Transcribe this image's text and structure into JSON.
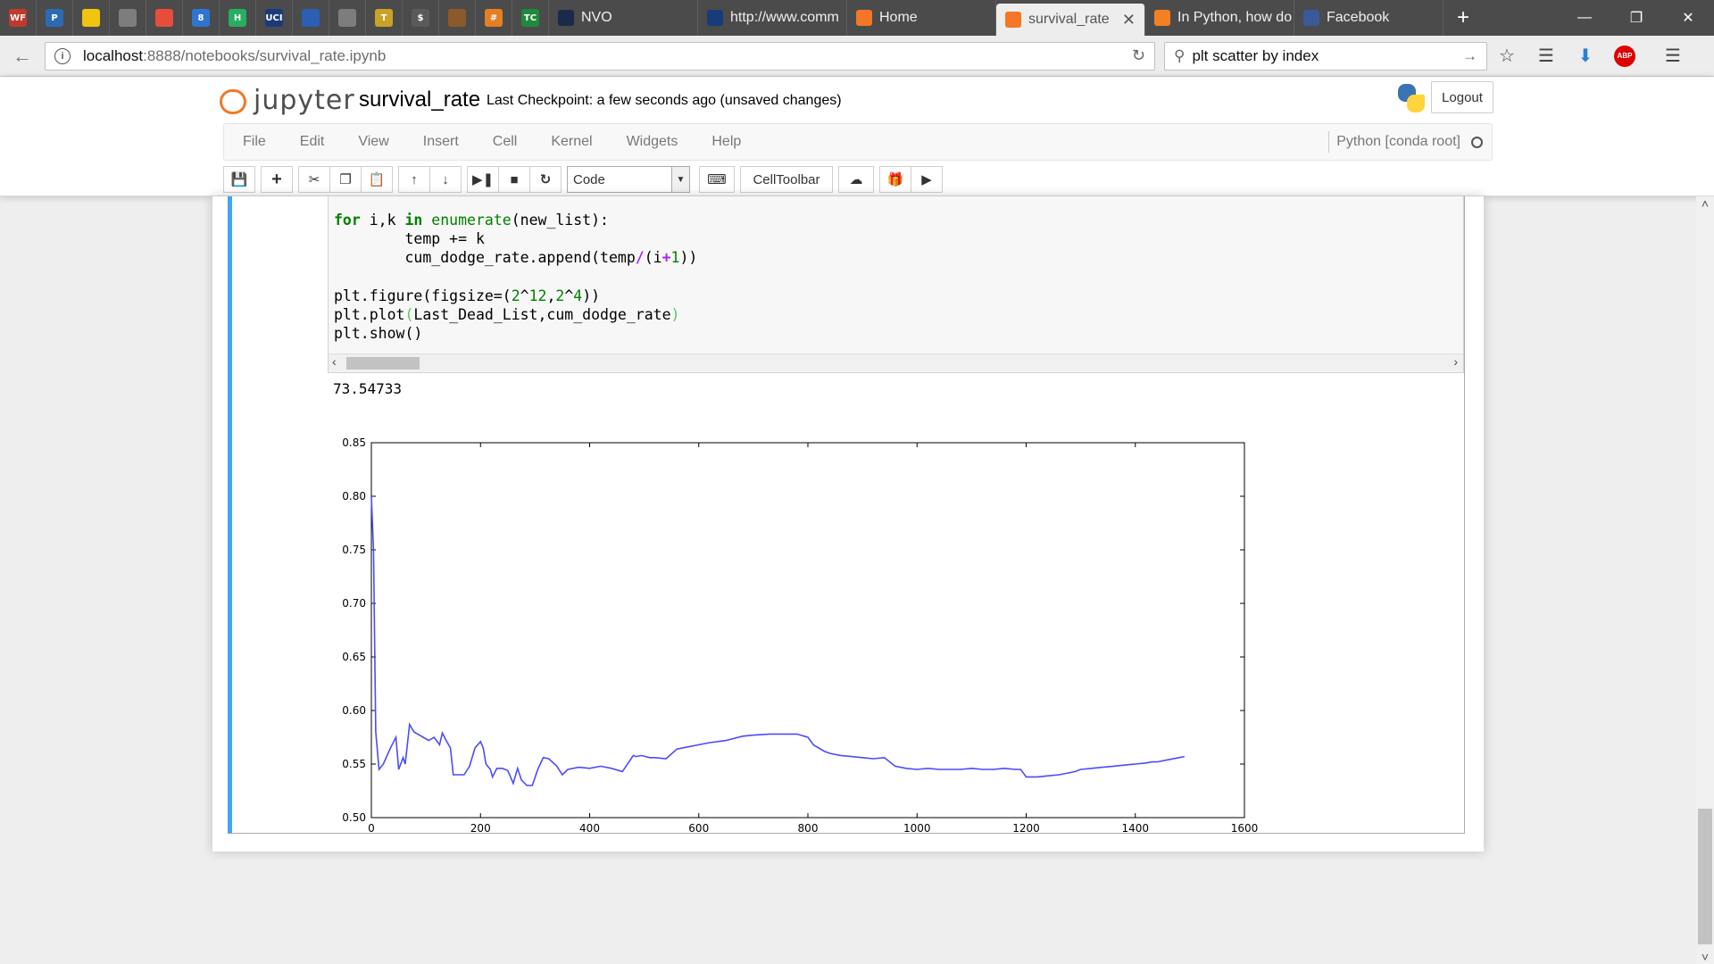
{
  "browser": {
    "pinned_tabs": [
      {
        "icon": "wf-icon",
        "text": "WF",
        "color": "#c0392b"
      },
      {
        "icon": "p-icon",
        "text": "P",
        "color": "#2d6ab3"
      },
      {
        "icon": "slides-icon",
        "text": "",
        "color": "#f1c40f"
      },
      {
        "icon": "globe-icon",
        "text": "",
        "color": "#7d7d7d"
      },
      {
        "icon": "ring-icon",
        "text": "",
        "color": "#e74c3c"
      },
      {
        "icon": "calendar-icon",
        "text": "8",
        "color": "#2f74d0"
      },
      {
        "icon": "h-icon",
        "text": "H",
        "color": "#27ae60"
      },
      {
        "icon": "uci-icon",
        "text": "UCI",
        "color": "#1a3b7a"
      },
      {
        "icon": "snowflake-icon",
        "text": "",
        "color": "#2b5fb4"
      },
      {
        "icon": "globe-icon",
        "text": "",
        "color": "#7d7d7d"
      },
      {
        "icon": "t-icon",
        "text": "T",
        "color": "#c9a227"
      },
      {
        "icon": "dollar-icon",
        "text": "$",
        "color": "#5a5a5a"
      },
      {
        "icon": "star-icon",
        "text": "",
        "color": "#8a5a2b"
      },
      {
        "icon": "hash-icon",
        "text": "#",
        "color": "#e67e22"
      },
      {
        "icon": "tc-icon",
        "text": "TC",
        "color": "#1e8a3a"
      }
    ],
    "tabs": [
      {
        "label": "NVO",
        "icon": "nvo-icon",
        "active": false
      },
      {
        "label": "http://www.comm",
        "icon": "uci-icon",
        "active": false
      },
      {
        "label": "Home",
        "icon": "jupyter-icon",
        "active": false
      },
      {
        "label": "survival_rate",
        "icon": "jupyter-icon",
        "active": true
      },
      {
        "label": "In Python, how do",
        "icon": "stackoverflow-icon",
        "active": false
      },
      {
        "label": "Facebook",
        "icon": "facebook-icon",
        "active": false
      }
    ],
    "new_tab": "+",
    "url_host": "localhost",
    "url_path": ":8888/notebooks/survival_rate.ipynb",
    "search_text": "plt scatter by index",
    "abp_label": "ABP"
  },
  "jupyter": {
    "logo_text": "jupyter",
    "notebook_name": "survival_rate",
    "checkpoint": "Last Checkpoint: a few seconds ago (unsaved changes)",
    "logout": "Logout",
    "menu": [
      "File",
      "Edit",
      "View",
      "Insert",
      "Cell",
      "Kernel",
      "Widgets",
      "Help"
    ],
    "kernel_name": "Python [conda root]",
    "cell_type": "Code",
    "celltoolbar_label": "CellToolbar"
  },
  "cell": {
    "code_lines": [
      [
        {
          "t": "for",
          "c": "kw"
        },
        {
          "t": " i,k "
        },
        {
          "t": "in",
          "c": "kw"
        },
        {
          "t": " "
        },
        {
          "t": "enumerate",
          "c": "bi"
        },
        {
          "t": "(new_list):"
        }
      ],
      [
        {
          "t": "        temp += k"
        }
      ],
      [
        {
          "t": "        cum_dodge_rate.append(temp"
        },
        {
          "t": "/",
          "c": "op"
        },
        {
          "t": "(i"
        },
        {
          "t": "+",
          "c": "op"
        },
        {
          "t": "1",
          "c": "num"
        },
        {
          "t": "))"
        }
      ],
      [
        {
          "t": ""
        }
      ],
      [
        {
          "t": "plt.figure(figsize=("
        },
        {
          "t": "2",
          "c": "num"
        },
        {
          "t": "^"
        },
        {
          "t": "12",
          "c": "num"
        },
        {
          "t": ","
        },
        {
          "t": "2",
          "c": "num"
        },
        {
          "t": "^"
        },
        {
          "t": "4",
          "c": "num"
        },
        {
          "t": "))"
        }
      ],
      [
        {
          "t": "plt.plot"
        },
        {
          "t": "(",
          "c": "par"
        },
        {
          "t": "Last_Dead_List,cum_dodge_rate"
        },
        {
          "t": ")",
          "c": "par"
        }
      ],
      [
        {
          "t": "plt.show()"
        }
      ]
    ],
    "output_text": "73.54733"
  },
  "chart_data": {
    "type": "line",
    "title": "",
    "xlabel": "",
    "ylabel": "",
    "xlim": [
      0,
      1600
    ],
    "ylim": [
      0.5,
      0.85
    ],
    "xticks": [
      0,
      200,
      400,
      600,
      800,
      1000,
      1200,
      1400,
      1600
    ],
    "yticks": [
      0.5,
      0.55,
      0.6,
      0.65,
      0.7,
      0.75,
      0.8,
      0.85
    ],
    "x_tick_labels": [
      "0",
      "200",
      "400",
      "600",
      "800",
      "1000",
      "1200",
      "1400",
      "1600"
    ],
    "y_tick_labels": [
      "0.50",
      "0.55",
      "0.60",
      "0.65",
      "0.70",
      "0.75",
      "0.80",
      "0.85"
    ],
    "grid": false,
    "color": "#4b4bff",
    "series": [
      {
        "x": [
          0,
          4,
          8,
          14,
          22,
          35,
          45,
          50,
          58,
          62,
          70,
          78,
          85,
          95,
          105,
          115,
          125,
          130,
          138,
          145,
          150,
          160,
          170,
          180,
          190,
          200,
          205,
          210,
          218,
          222,
          230,
          240,
          250,
          260,
          268,
          275,
          285,
          295,
          305,
          315,
          325,
          340,
          350,
          360,
          380,
          400,
          420,
          440,
          460,
          480,
          485,
          495,
          510,
          520,
          540,
          560,
          580,
          600,
          620,
          650,
          680,
          700,
          730,
          750,
          760,
          780,
          800,
          810,
          820,
          830,
          840,
          860,
          880,
          900,
          920,
          940,
          960,
          980,
          1000,
          1020,
          1040,
          1060,
          1080,
          1100,
          1120,
          1140,
          1160,
          1180,
          1190,
          1200,
          1220,
          1240,
          1260,
          1280,
          1290,
          1300,
          1320,
          1340,
          1360,
          1380,
          1400,
          1420,
          1430,
          1440,
          1460,
          1480,
          1490
        ],
        "y": [
          0.8,
          0.75,
          0.58,
          0.545,
          0.55,
          0.565,
          0.575,
          0.545,
          0.556,
          0.55,
          0.587,
          0.58,
          0.578,
          0.575,
          0.572,
          0.575,
          0.568,
          0.579,
          0.571,
          0.565,
          0.54,
          0.54,
          0.54,
          0.548,
          0.565,
          0.571,
          0.565,
          0.55,
          0.545,
          0.538,
          0.546,
          0.546,
          0.544,
          0.532,
          0.546,
          0.535,
          0.53,
          0.53,
          0.545,
          0.556,
          0.555,
          0.548,
          0.54,
          0.545,
          0.547,
          0.546,
          0.548,
          0.546,
          0.543,
          0.558,
          0.557,
          0.558,
          0.556,
          0.556,
          0.555,
          0.564,
          0.566,
          0.568,
          0.57,
          0.572,
          0.576,
          0.577,
          0.578,
          0.578,
          0.578,
          0.578,
          0.575,
          0.568,
          0.565,
          0.562,
          0.56,
          0.558,
          0.557,
          0.556,
          0.555,
          0.556,
          0.548,
          0.546,
          0.545,
          0.546,
          0.545,
          0.545,
          0.545,
          0.546,
          0.545,
          0.545,
          0.546,
          0.545,
          0.545,
          0.538,
          0.538,
          0.539,
          0.54,
          0.542,
          0.543,
          0.545,
          0.546,
          0.547,
          0.548,
          0.549,
          0.55,
          0.551,
          0.552,
          0.552,
          0.554,
          0.556,
          0.557
        ]
      }
    ]
  }
}
